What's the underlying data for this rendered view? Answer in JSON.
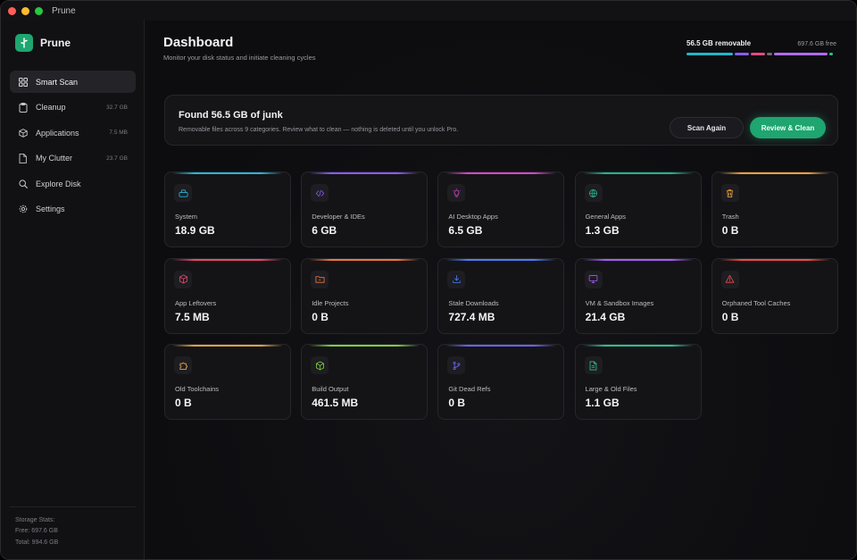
{
  "window": {
    "title": "Prune"
  },
  "sidebar": {
    "brand": "Prune",
    "items": [
      {
        "label": "Smart Scan",
        "size": "",
        "icon": "grid-icon",
        "active": true
      },
      {
        "label": "Cleanup",
        "size": "32.7 GB",
        "icon": "clipboard-icon",
        "active": false
      },
      {
        "label": "Applications",
        "size": "7.5 MB",
        "icon": "cube-icon",
        "active": false
      },
      {
        "label": "My Clutter",
        "size": "23.7 GB",
        "icon": "file-icon",
        "active": false
      },
      {
        "label": "Explore Disk",
        "size": "",
        "icon": "search-icon",
        "active": false
      },
      {
        "label": "Settings",
        "size": "",
        "icon": "gear-icon",
        "active": false
      }
    ],
    "storage": {
      "heading": "Storage Stats:",
      "free": "Free: 697.6 GB",
      "total": "Total: 994.6 GB"
    }
  },
  "header": {
    "title": "Dashboard",
    "subtitle": "Monitor your disk status and initiate cleaning cycles"
  },
  "diskbar": {
    "removable": "56.5 GB removable",
    "free": "697.6 GB free",
    "segments_colors": [
      "#22b5c9",
      "#8a5cf5",
      "#e34b7a",
      "#6b6b73",
      "#b06af7",
      "#2bc47c"
    ]
  },
  "summary": {
    "heading": "Found 56.5 GB of junk",
    "description": "Removable files across 9 categories. Review what to clean — nothing is deleted until you unlock Pro.",
    "scan_again": "Scan Again",
    "review_clean": "Review & Clean"
  },
  "categories": [
    {
      "label": "System",
      "value": "18.9 GB",
      "icon": "drive-icon",
      "color": "#2ab4d6"
    },
    {
      "label": "Developer & IDEs",
      "value": "6 GB",
      "icon": "code-icon",
      "color": "#8c5cf6"
    },
    {
      "label": "AI Desktop Apps",
      "value": "6.5 GB",
      "icon": "lightbulb-icon",
      "color": "#d846c9"
    },
    {
      "label": "General Apps",
      "value": "1.3 GB",
      "icon": "globe-icon",
      "color": "#24b38a"
    },
    {
      "label": "Trash",
      "value": "0 B",
      "icon": "trash-icon",
      "color": "#f0a23a"
    },
    {
      "label": "App Leftovers",
      "value": "7.5 MB",
      "icon": "package-icon",
      "color": "#e8476f"
    },
    {
      "label": "Idle Projects",
      "value": "0 B",
      "icon": "folder-icon",
      "color": "#f2763b"
    },
    {
      "label": "Stale Downloads",
      "value": "727.4 MB",
      "icon": "download-icon",
      "color": "#4f7cf6"
    },
    {
      "label": "VM & Sandbox Images",
      "value": "21.4 GB",
      "icon": "monitor-icon",
      "color": "#a85cf7"
    },
    {
      "label": "Orphaned Tool Caches",
      "value": "0 B",
      "icon": "warning-icon",
      "color": "#ef4b4b"
    },
    {
      "label": "Old Toolchains",
      "value": "0 B",
      "icon": "puzzle-icon",
      "color": "#e9a33b"
    },
    {
      "label": "Build Output",
      "value": "461.5 MB",
      "icon": "box-icon",
      "color": "#7fcf3a"
    },
    {
      "label": "Git Dead Refs",
      "value": "0 B",
      "icon": "git-branch-icon",
      "color": "#6e63f2"
    },
    {
      "label": "Large & Old Files",
      "value": "1.1 GB",
      "icon": "document-icon",
      "color": "#2dbf8d"
    }
  ]
}
